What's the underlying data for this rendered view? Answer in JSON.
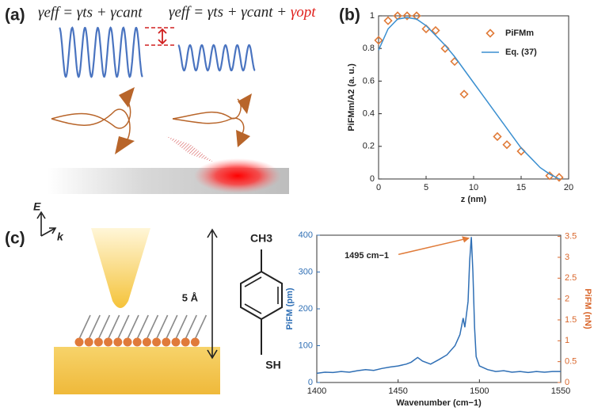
{
  "panels": [
    "(a)",
    "(b)",
    "(c)"
  ],
  "equations": {
    "left": "γeff = γts + γcant",
    "right": "γeff = γts + γcant + ",
    "right_extra": "γopt"
  },
  "diagram": {
    "field": "E",
    "wavevector": "k",
    "length": "5 Å",
    "top_group": "CH3",
    "bottom_group": "SH"
  },
  "chart_data": [
    {
      "type": "scatter",
      "xlabel": "z (nm)",
      "ylabel": "PiFMm/A2 (a. u.)",
      "xlim": [
        0,
        20
      ],
      "xticks": [
        0,
        5,
        10,
        15,
        20
      ],
      "ylim": [
        0,
        1
      ],
      "yticks": [
        0,
        0.2,
        0.4,
        0.6,
        0.8,
        1
      ],
      "legend": "upper right",
      "series": [
        {
          "name": "PiFMm",
          "color": "#e07b39",
          "style": "marker",
          "x": [
            0,
            1,
            2,
            3,
            4,
            5,
            6,
            7,
            8,
            9,
            12.5,
            13.5,
            15,
            18,
            19
          ],
          "values": [
            0.85,
            0.97,
            1.0,
            1.0,
            1.0,
            0.92,
            0.91,
            0.8,
            0.72,
            0.52,
            0.26,
            0.21,
            0.17,
            0.02,
            0.01
          ]
        },
        {
          "name": "Eq. (37)",
          "color": "#3a8fd0",
          "style": "line",
          "x": [
            0,
            1,
            2,
            3,
            4,
            5,
            6,
            7,
            8,
            9,
            10,
            11,
            12,
            13,
            14,
            15,
            16,
            17,
            18,
            19
          ],
          "values": [
            0.79,
            0.92,
            0.98,
            0.99,
            0.98,
            0.94,
            0.88,
            0.82,
            0.75,
            0.67,
            0.59,
            0.51,
            0.43,
            0.35,
            0.27,
            0.19,
            0.13,
            0.07,
            0.03,
            0
          ]
        }
      ]
    },
    {
      "type": "line",
      "xlabel": "Wavenumber (cm−1)",
      "ylabel": "PiFM (pm)",
      "y2label": "PiFM (nN)",
      "color": "#2f6fb5",
      "y2color": "#d9662b",
      "xlim": [
        1400,
        1550
      ],
      "xticks": [
        1400,
        1450,
        1500,
        1550
      ],
      "ylim": [
        0,
        400
      ],
      "yticks": [
        0,
        100,
        200,
        300,
        400
      ],
      "y2lim": [
        0,
        3.53
      ],
      "y2ticks": [
        0,
        0.5,
        1,
        1.5,
        2,
        2.5,
        3,
        3.5
      ],
      "x": [
        1400,
        1405,
        1410,
        1415,
        1420,
        1425,
        1430,
        1435,
        1440,
        1445,
        1450,
        1455,
        1458,
        1462,
        1465,
        1470,
        1475,
        1480,
        1485,
        1488,
        1490,
        1491,
        1493,
        1494,
        1495,
        1496,
        1497,
        1498,
        1500,
        1505,
        1510,
        1515,
        1520,
        1525,
        1530,
        1535,
        1540,
        1545,
        1550
      ],
      "values": [
        25,
        28,
        27,
        30,
        28,
        32,
        35,
        33,
        38,
        42,
        45,
        50,
        55,
        68,
        58,
        50,
        62,
        75,
        100,
        130,
        175,
        150,
        220,
        330,
        395,
        300,
        150,
        70,
        45,
        35,
        30,
        32,
        28,
        30,
        27,
        30,
        28,
        30,
        30
      ],
      "annotation": {
        "text": "1495 cm−1",
        "x": 1495,
        "y": 395
      }
    }
  ]
}
